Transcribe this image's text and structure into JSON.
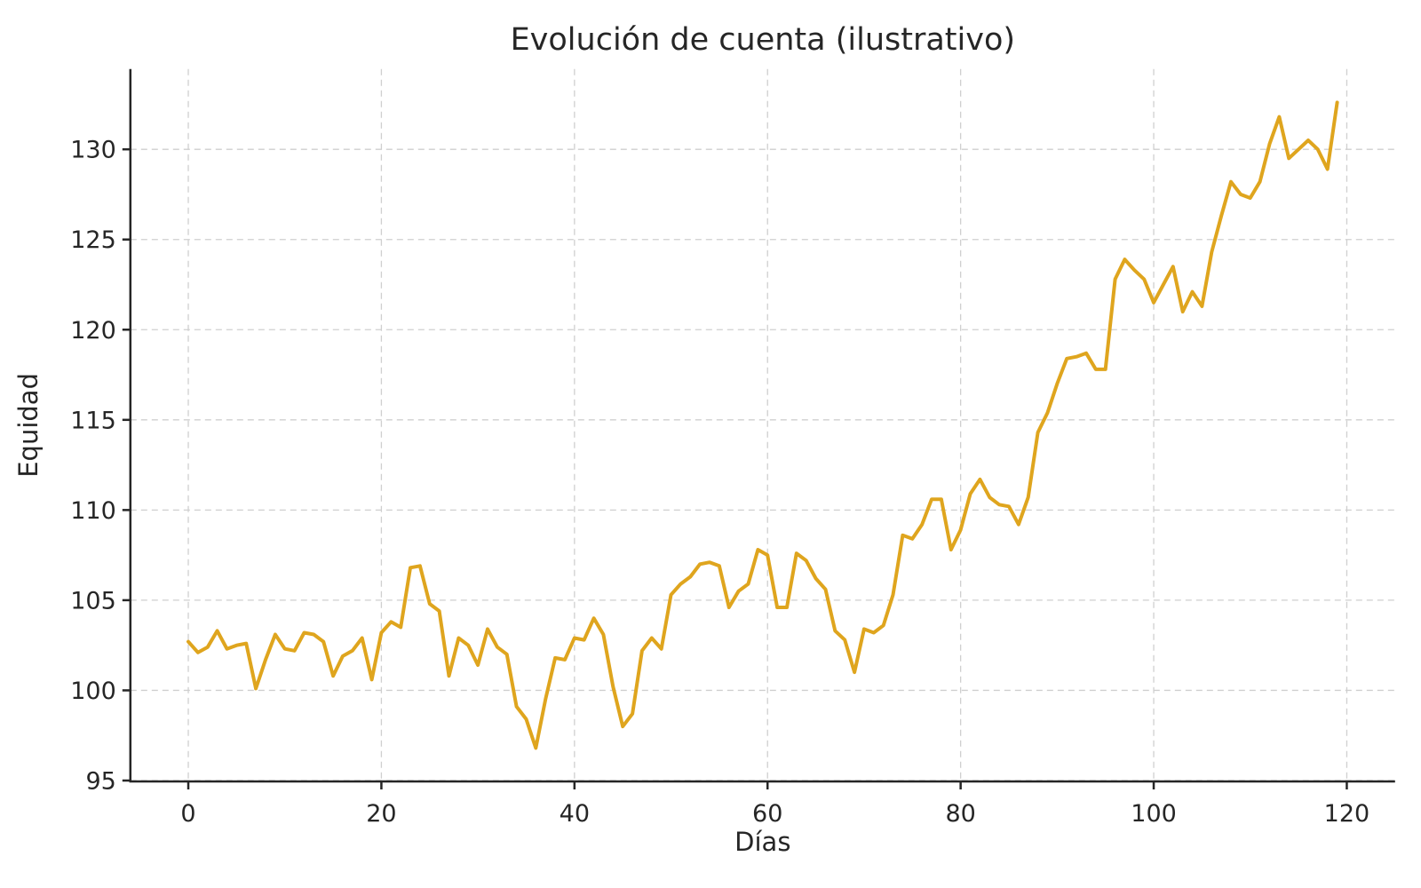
{
  "chart_data": {
    "type": "line",
    "title": "Evolución de cuenta (ilustrativo)",
    "xlabel": "Días",
    "ylabel": "Equidad",
    "x_ticks": [
      0,
      20,
      40,
      60,
      80,
      100,
      120
    ],
    "y_ticks": [
      95,
      100,
      105,
      110,
      115,
      120,
      125,
      130
    ],
    "xlim": [
      -6,
      125
    ],
    "ylim": [
      94.95,
      134.45
    ],
    "grid": true,
    "grid_style": "dashed",
    "legend": "none",
    "series_name": "equity-curve",
    "line_color": "#DFA51E",
    "line_width": 4,
    "grid_color": "#cfcfcf",
    "spine_color": "#262626",
    "text_color": "#262626",
    "x_is_day_index_starting_at_0": true,
    "values": [
      102.7,
      102.1,
      102.4,
      103.3,
      102.3,
      102.5,
      102.6,
      100.1,
      101.7,
      103.1,
      102.3,
      102.2,
      103.2,
      103.1,
      102.7,
      100.8,
      101.9,
      102.2,
      102.9,
      100.6,
      103.2,
      103.8,
      103.5,
      106.8,
      106.9,
      104.8,
      104.4,
      100.8,
      102.9,
      102.5,
      101.4,
      103.4,
      102.4,
      102.0,
      99.1,
      98.4,
      96.8,
      99.5,
      101.8,
      101.7,
      102.9,
      102.8,
      104.0,
      103.1,
      100.2,
      98.0,
      98.7,
      102.2,
      102.9,
      102.3,
      105.3,
      105.9,
      106.3,
      107.0,
      107.1,
      106.9,
      104.6,
      105.5,
      105.9,
      107.8,
      107.5,
      104.6,
      104.6,
      107.6,
      107.2,
      106.2,
      105.6,
      103.3,
      102.8,
      101.0,
      103.4,
      103.2,
      103.6,
      105.3,
      108.6,
      108.4,
      109.2,
      110.6,
      110.6,
      107.8,
      108.9,
      110.9,
      111.7,
      110.7,
      110.3,
      110.2,
      109.2,
      110.7,
      114.3,
      115.4,
      117.0,
      118.4,
      118.5,
      118.7,
      117.8,
      117.8,
      122.8,
      123.9,
      123.3,
      122.8,
      121.5,
      122.5,
      123.5,
      121.0,
      122.1,
      121.3,
      124.3,
      126.3,
      128.2,
      127.5,
      127.3,
      128.2,
      130.3,
      131.8,
      129.5,
      130.0,
      130.5,
      130.0,
      128.9,
      132.6
    ]
  }
}
